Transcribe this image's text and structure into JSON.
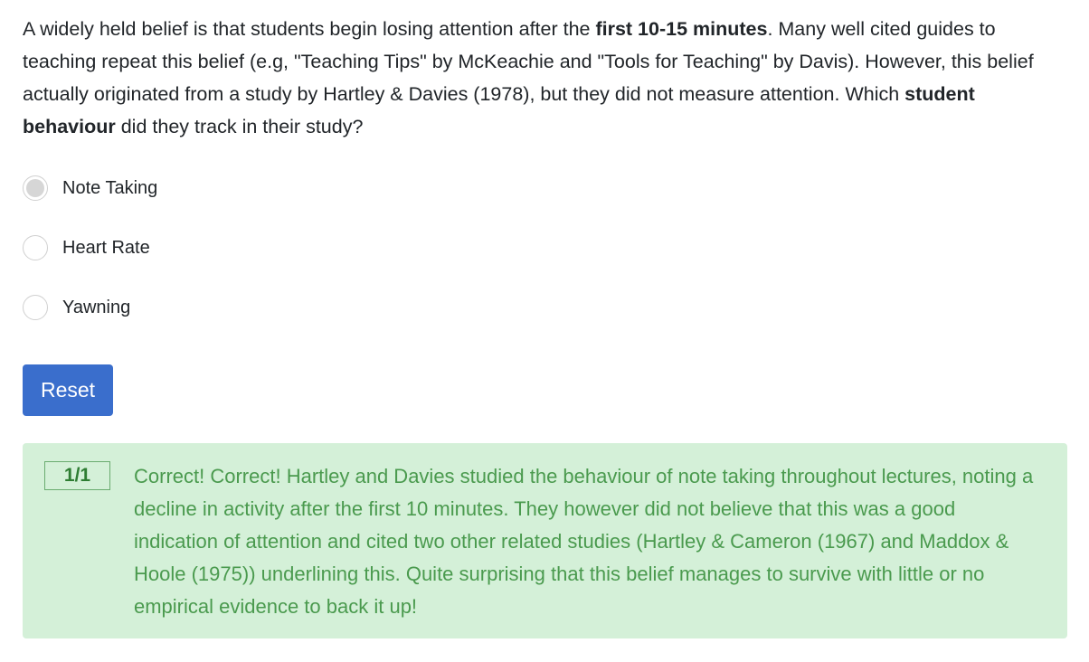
{
  "question": {
    "part1": "A widely held belief is that students begin losing attention after the ",
    "bold1": "first 10-15 minutes",
    "part2": ". Many well cited guides to teaching repeat this belief (e.g, \"Teaching Tips\" by McKeachie and \"Tools for Teaching\" by Davis). However, this belief actually originated from a study by Hartley & Davies (1978), but they did not measure attention. Which ",
    "bold2": "student behaviour",
    "part3": " did they track in their study?"
  },
  "options": [
    {
      "label": "Note Taking",
      "selected": true
    },
    {
      "label": "Heart Rate",
      "selected": false
    },
    {
      "label": "Yawning",
      "selected": false
    }
  ],
  "reset_label": "Reset",
  "feedback": {
    "score": "1/1",
    "text": "Correct! Correct! Hartley and Davies studied the behaviour of note taking throughout lectures, noting a decline in activity after the first 10 minutes. They however did not believe that this was a good indication of attention and cited two other related studies (Hartley & Cameron (1967) and Maddox & Hoole (1975)) underlining this. Quite surprising that this belief manages to survive with little or no empirical evidence to back it up!"
  },
  "colors": {
    "primary_button": "#3a6ecc",
    "feedback_bg": "#d4f0d8",
    "feedback_text": "#4a9a4e",
    "radio_selected_fill": "#d6d6d6"
  }
}
